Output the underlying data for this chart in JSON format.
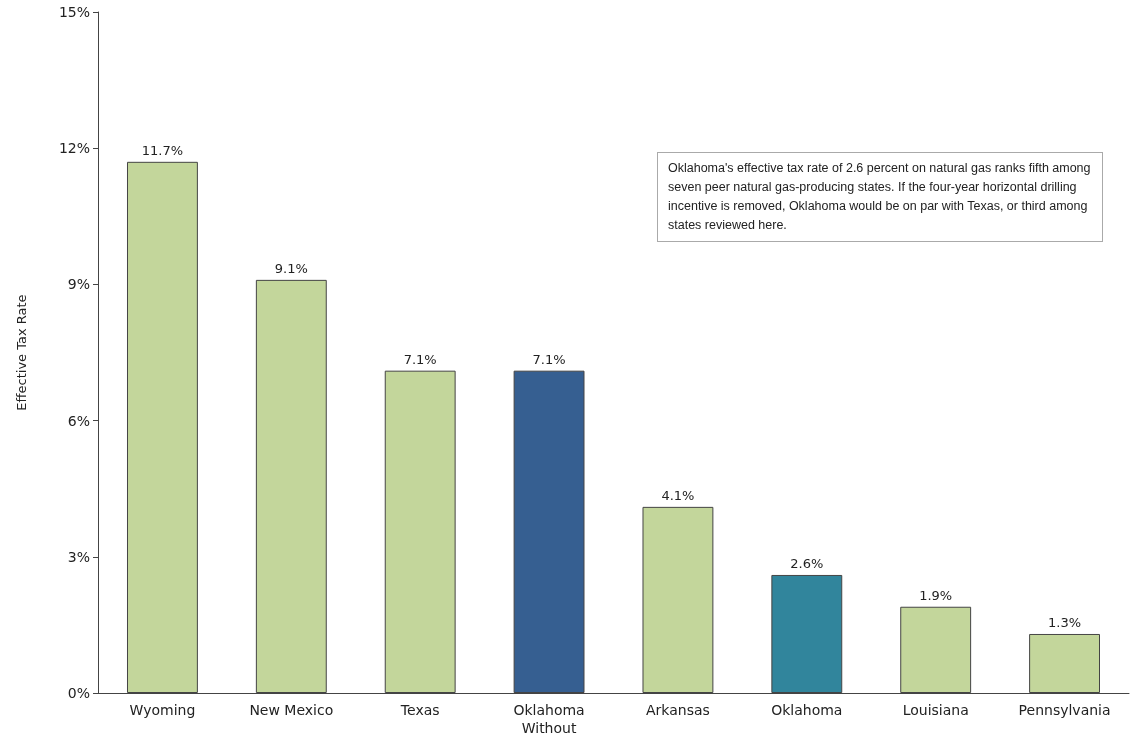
{
  "chart_data": {
    "type": "bar",
    "ylabel": "Effective Tax Rate",
    "categories": [
      "Wyoming",
      "New Mexico",
      "Texas",
      "Oklahoma\nWithout",
      "Arkansas",
      "Oklahoma",
      "Louisiana",
      "Pennsylvania"
    ],
    "values": [
      11.7,
      9.1,
      7.1,
      7.1,
      4.1,
      2.6,
      1.9,
      1.3
    ],
    "colors": [
      "#c3d69b",
      "#c3d69b",
      "#c3d69b",
      "#365f91",
      "#c3d69b",
      "#31859c",
      "#c3d69b",
      "#c3d69b"
    ],
    "value_labels": [
      "11.7%",
      "9.1%",
      "7.1%",
      "7.1%",
      "4.1%",
      "2.6%",
      "1.9%",
      "1.3%"
    ],
    "ylim": [
      0,
      15
    ],
    "yticks": [
      {
        "value": 0,
        "label": "0%"
      },
      {
        "value": 3,
        "label": "3%"
      },
      {
        "value": 6,
        "label": "6%"
      },
      {
        "value": 9,
        "label": "9%"
      },
      {
        "value": 12,
        "label": "12%"
      },
      {
        "value": 15,
        "label": "15%"
      }
    ],
    "grid": false,
    "annotations": [
      "Oklahoma's effective tax rate of 2.6 percent on natural gas ranks fifth among seven peer natural gas-producing states. If the four-year horizontal drilling incentive is removed, Oklahoma would be on par with Texas, or third among states reviewed here."
    ]
  }
}
